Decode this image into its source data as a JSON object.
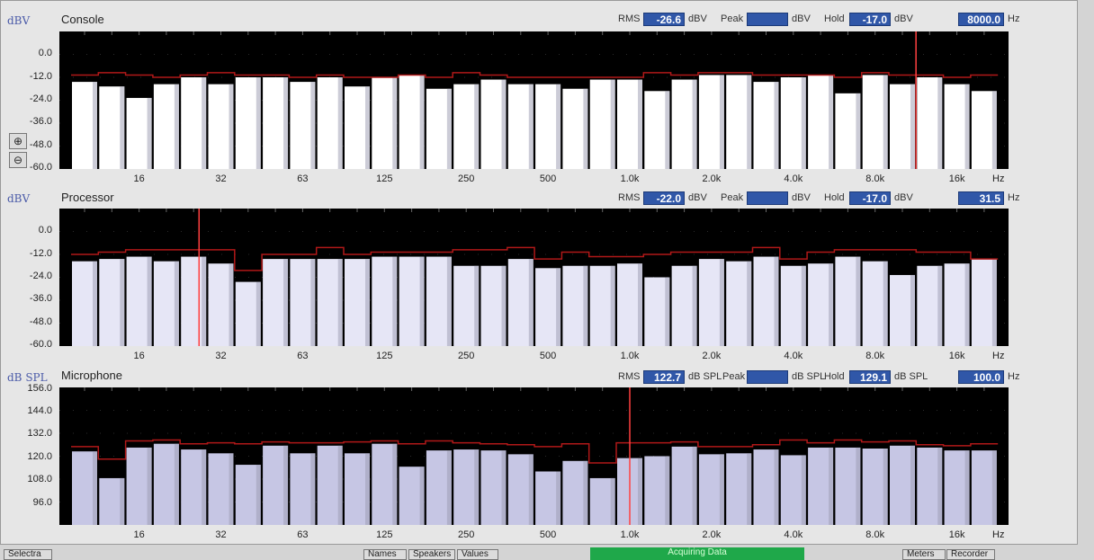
{
  "panels": [
    {
      "unit": "dBV",
      "title": "Console",
      "rms_label": "RMS",
      "rms": "-26.6",
      "rms_unit": "dBV",
      "peak_label": "Peak",
      "peak": "",
      "peak_unit": "dBV",
      "hold_label": "Hold",
      "hold": "-17.0",
      "hold_unit": "dBV",
      "freq": "8000.0",
      "freq_unit": "Hz",
      "yticks": [
        "0.0",
        "-12.0",
        "-24.0",
        "-36.0",
        "-48.0",
        "-60.0"
      ],
      "xtick_labels": [
        "16",
        "32",
        "63",
        "125",
        "250",
        "500",
        "1.0k",
        "2.0k",
        "4.0k",
        "8.0k",
        "16k"
      ],
      "x_unit": "Hz"
    },
    {
      "unit": "dBV",
      "title": "Processor",
      "rms_label": "RMS",
      "rms": "-22.0",
      "rms_unit": "dBV",
      "peak_label": "Peak",
      "peak": "",
      "peak_unit": "dBV",
      "hold_label": "Hold",
      "hold": "-17.0",
      "hold_unit": "dBV",
      "freq": "31.5",
      "freq_unit": "Hz",
      "yticks": [
        "0.0",
        "-12.0",
        "-24.0",
        "-36.0",
        "-48.0",
        "-60.0"
      ],
      "xtick_labels": [
        "16",
        "32",
        "63",
        "125",
        "250",
        "500",
        "1.0k",
        "2.0k",
        "4.0k",
        "8.0k",
        "16k"
      ],
      "x_unit": "Hz"
    },
    {
      "unit": "dB SPL",
      "title": "Microphone",
      "rms_label": "RMS",
      "rms": "122.7",
      "rms_unit": "dB SPL",
      "peak_label": "Peak",
      "peak": "",
      "peak_unit": "dB SPL",
      "hold_label": "Hold",
      "hold": "129.1",
      "hold_unit": "dB SPL",
      "freq": "100.0",
      "freq_unit": "Hz",
      "yticks": [
        "156.0",
        "144.0",
        "132.0",
        "120.0",
        "108.0",
        "96.0"
      ],
      "xtick_labels": [
        "16",
        "32",
        "63",
        "125",
        "250",
        "500",
        "1.0k",
        "2.0k",
        "4.0k",
        "8.0k",
        "16k"
      ],
      "x_unit": "Hz"
    }
  ],
  "bottom": {
    "left_btn": "Selectra",
    "btn1": "Names",
    "btn2": "Speakers",
    "btn3": "Values",
    "status": "Acquiring Data",
    "btn4": "Meters",
    "btn5": "Recorder"
  },
  "colors": {
    "plot_bg": "#000000",
    "hold_line": "#b01818",
    "cursor": "#ff4040",
    "bar_console": "#ffffff",
    "bar_processor": "#e6e6f6",
    "bar_mic": "#c6c6e4",
    "meter_value_bg": "#3057a8",
    "unit_text": "#4a5aa8",
    "status_green": "#1fa84a"
  },
  "icons": {
    "zoom_in": "zoom-in-icon",
    "zoom_out": "zoom-out-icon"
  },
  "chart_data": [
    {
      "type": "bar",
      "title": "Console",
      "ylabel": "dBV",
      "ylim": [
        -60,
        0
      ],
      "y_scale": "linear",
      "x_scale": "log (1/3-octave bands)",
      "xtick_labels": [
        "16",
        "32",
        "63",
        "125",
        "250",
        "500",
        "1.0k",
        "2.0k",
        "4.0k",
        "8.0k",
        "16k"
      ],
      "series": [
        {
          "values": [
            -22,
            -24,
            -29,
            -23,
            -20,
            -23,
            -20,
            -20,
            -22,
            -20,
            -24,
            -20,
            -19,
            -25,
            -23,
            -21,
            -23,
            -23,
            -25,
            -21,
            -21,
            -26,
            -21,
            -19,
            -19,
            -22,
            -20,
            -19,
            -27,
            -19,
            -23,
            -20,
            -23,
            -26
          ]
        },
        {
          "values": [
            -19,
            -18,
            -19,
            -20,
            -19,
            -18,
            -19,
            -19,
            -20,
            -19,
            -20,
            -20,
            -19,
            -20,
            -18,
            -19,
            -20,
            -20,
            -20,
            -20,
            -20,
            -18,
            -19,
            -18,
            -18,
            -19,
            -19,
            -19,
            -20,
            -18,
            -19,
            -19,
            -20,
            -19
          ]
        }
      ],
      "cursor_hz": "8000.0"
    },
    {
      "type": "bar",
      "title": "Processor",
      "ylabel": "dBV",
      "ylim": [
        -60,
        0
      ],
      "y_scale": "linear",
      "x_scale": "log (1/3-octave bands)",
      "xtick_labels": [
        "16",
        "32",
        "63",
        "125",
        "250",
        "500",
        "1.0k",
        "2.0k",
        "4.0k",
        "8.0k",
        "16k"
      ],
      "series": [
        {
          "values": [
            -23,
            -22,
            -21,
            -23,
            -21,
            -24,
            -32,
            -22,
            -22,
            -22,
            -22,
            -21,
            -21,
            -21,
            -25,
            -25,
            -22,
            -26,
            -25,
            -25,
            -24,
            -30,
            -25,
            -22,
            -23,
            -21,
            -25,
            -24,
            -21,
            -23,
            -29,
            -25,
            -24,
            -22
          ]
        },
        {
          "values": [
            -20,
            -19,
            -18,
            -18,
            -18,
            -18,
            -27,
            -20,
            -20,
            -17,
            -20,
            -19,
            -19,
            -19,
            -18,
            -18,
            -17,
            -22,
            -19,
            -21,
            -21,
            -20,
            -19,
            -19,
            -19,
            -17,
            -22,
            -19,
            -18,
            -18,
            -18,
            -19,
            -19,
            -22
          ]
        }
      ],
      "cursor_hz": "31.5"
    },
    {
      "type": "bar",
      "title": "Microphone",
      "ylabel": "dB SPL",
      "ylim": [
        84,
        156
      ],
      "y_scale": "linear",
      "x_scale": "log (1/3-octave bands)",
      "xtick_labels": [
        "16",
        "32",
        "63",
        "125",
        "250",
        "500",
        "1.0k",
        "2.0k",
        "4.0k",
        "8.0k",
        "16k"
      ],
      "series": [
        {
          "values": [
            122.5,
            108.5,
            124.5,
            126.5,
            123.5,
            121.5,
            115.5,
            125.5,
            121.5,
            125.5,
            121.5,
            126.5,
            114.5,
            123,
            123.5,
            123,
            121,
            112,
            117.5,
            108.5,
            119,
            120,
            125,
            121,
            121.5,
            123.5,
            120.5,
            124.5,
            124.5,
            124,
            125.5,
            124.5,
            123,
            123
          ]
        },
        {
          "values": [
            125,
            118.5,
            128,
            128.5,
            126.5,
            127,
            126.5,
            127.5,
            127,
            127,
            127.5,
            128,
            126.5,
            128,
            127,
            126.5,
            126,
            125,
            126.5,
            116.5,
            127,
            127,
            127.5,
            125,
            125,
            126,
            128.5,
            127,
            128.5,
            127.5,
            128,
            126,
            125.5,
            126.5
          ]
        }
      ],
      "cursor_hz": "100.0"
    }
  ]
}
